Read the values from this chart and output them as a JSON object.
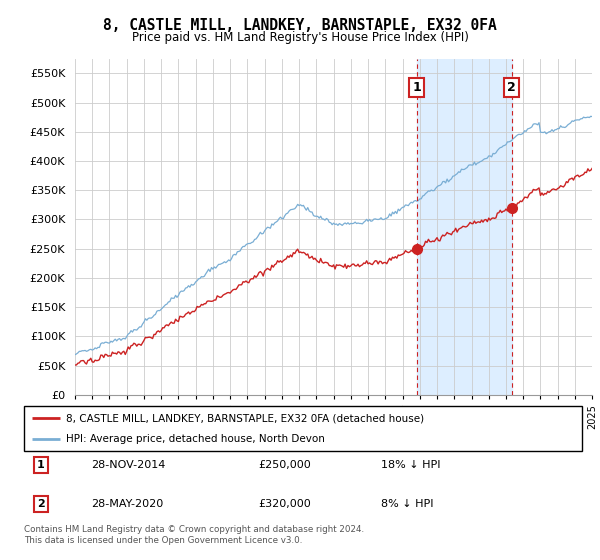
{
  "title": "8, CASTLE MILL, LANDKEY, BARNSTAPLE, EX32 0FA",
  "subtitle": "Price paid vs. HM Land Registry's House Price Index (HPI)",
  "hpi_color": "#7aaed4",
  "price_color": "#cc2222",
  "shading_color": "#ddeeff",
  "sale1_price": 250000,
  "sale2_price": 320000,
  "sale1_date": "28-NOV-2014",
  "sale2_date": "28-MAY-2020",
  "sale1_hpi_pct": "18% ↓ HPI",
  "sale2_hpi_pct": "8% ↓ HPI",
  "legend_line1": "8, CASTLE MILL, LANDKEY, BARNSTAPLE, EX32 0FA (detached house)",
  "legend_line2": "HPI: Average price, detached house, North Devon",
  "footnote": "Contains HM Land Registry data © Crown copyright and database right 2024.\nThis data is licensed under the Open Government Licence v3.0.",
  "ylim_min": 0,
  "ylim_max": 575000,
  "yticks": [
    0,
    50000,
    100000,
    150000,
    200000,
    250000,
    300000,
    350000,
    400000,
    450000,
    500000,
    550000
  ],
  "idx1": 238,
  "idx2": 304,
  "n_months": 361
}
